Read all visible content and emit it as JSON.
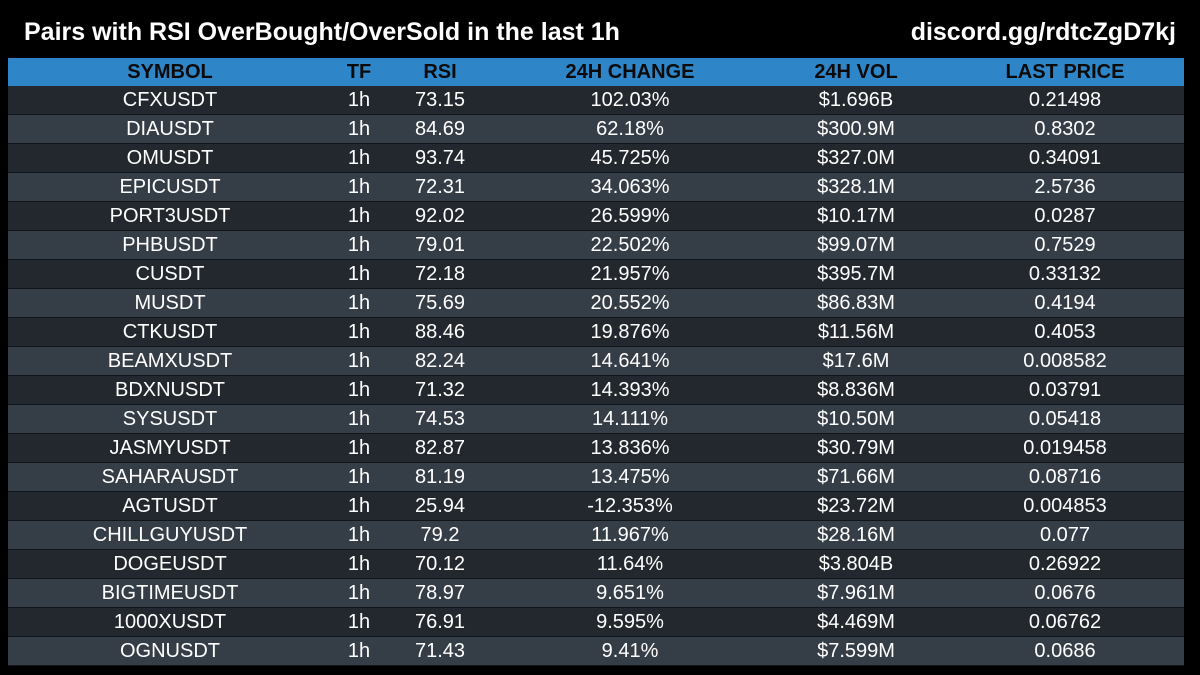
{
  "header": {
    "title": "Pairs with RSI OverBought/OverSold in the last 1h",
    "discord": "discord.gg/rdtcZgD7kj"
  },
  "table": {
    "columns": [
      "SYMBOL",
      "TF",
      "RSI",
      "24H CHANGE",
      "24H VOL",
      "LAST PRICE"
    ],
    "rows": [
      [
        "CFXUSDT",
        "1h",
        "73.15",
        "102.03%",
        "$1.696B",
        "0.21498"
      ],
      [
        "DIAUSDT",
        "1h",
        "84.69",
        "62.18%",
        "$300.9M",
        "0.8302"
      ],
      [
        "OMUSDT",
        "1h",
        "93.74",
        "45.725%",
        "$327.0M",
        "0.34091"
      ],
      [
        "EPICUSDT",
        "1h",
        "72.31",
        "34.063%",
        "$328.1M",
        "2.5736"
      ],
      [
        "PORT3USDT",
        "1h",
        "92.02",
        "26.599%",
        "$10.17M",
        "0.0287"
      ],
      [
        "PHBUSDT",
        "1h",
        "79.01",
        "22.502%",
        "$99.07M",
        "0.7529"
      ],
      [
        "CUSDT",
        "1h",
        "72.18",
        "21.957%",
        "$395.7M",
        "0.33132"
      ],
      [
        "MUSDT",
        "1h",
        "75.69",
        "20.552%",
        "$86.83M",
        "0.4194"
      ],
      [
        "CTKUSDT",
        "1h",
        "88.46",
        "19.876%",
        "$11.56M",
        "0.4053"
      ],
      [
        "BEAMXUSDT",
        "1h",
        "82.24",
        "14.641%",
        "$17.6M",
        "0.008582"
      ],
      [
        "BDXNUSDT",
        "1h",
        "71.32",
        "14.393%",
        "$8.836M",
        "0.03791"
      ],
      [
        "SYSUSDT",
        "1h",
        "74.53",
        "14.111%",
        "$10.50M",
        "0.05418"
      ],
      [
        "JASMYUSDT",
        "1h",
        "82.87",
        "13.836%",
        "$30.79M",
        "0.019458"
      ],
      [
        "SAHARAUSDT",
        "1h",
        "81.19",
        "13.475%",
        "$71.66M",
        "0.08716"
      ],
      [
        "AGTUSDT",
        "1h",
        "25.94",
        "-12.353%",
        "$23.72M",
        "0.004853"
      ],
      [
        "CHILLGUYUSDT",
        "1h",
        "79.2",
        "11.967%",
        "$28.16M",
        "0.077"
      ],
      [
        "DOGEUSDT",
        "1h",
        "70.12",
        "11.64%",
        "$3.804B",
        "0.26922"
      ],
      [
        "BIGTIMEUSDT",
        "1h",
        "78.97",
        "9.651%",
        "$7.961M",
        "0.0676"
      ],
      [
        "1000XUSDT",
        "1h",
        "76.91",
        "9.595%",
        "$4.469M",
        "0.06762"
      ],
      [
        "OGNUSDT",
        "1h",
        "71.43",
        "9.41%",
        "$7.599M",
        "0.0686"
      ]
    ]
  },
  "colors": {
    "header_bg": "#2e86c8",
    "row_dark": "#22282e",
    "row_light": "#353d46",
    "page_bg": "#000000"
  }
}
